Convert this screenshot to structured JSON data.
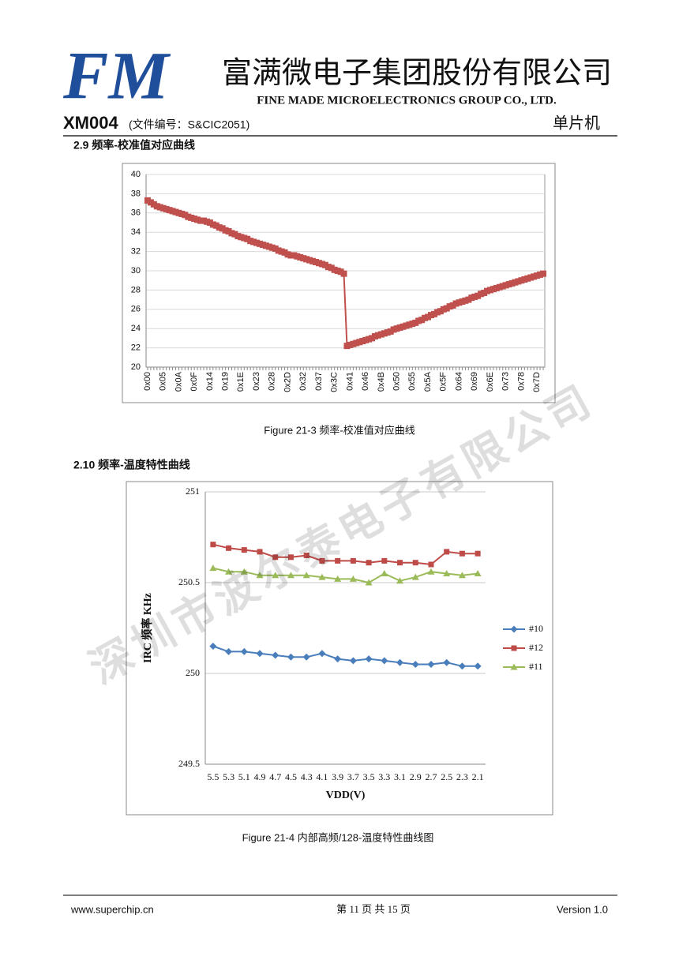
{
  "header": {
    "logo": "FM",
    "company": "富满微电子集团股份有限公司",
    "company_en": "FINE MADE MICROELECTRONICS GROUP CO., LTD.",
    "doc": "XM004",
    "doc_no": "(文件编号：S&CIC2051)",
    "category": "单片机"
  },
  "sections": [
    {
      "heading": "2.9 频率-校准值对应曲线",
      "caption": "Figure 21-3 频率-校准值对应曲线"
    },
    {
      "heading": "2.10 频率-温度特性曲线",
      "caption": "Figure 21-4 内部高频/128-温度特性曲线图"
    }
  ],
  "watermark": "深圳市波尔泰电子有限公司",
  "footer": {
    "site": "www.superchip.cn",
    "page": "第 11 页 共 15 页",
    "version": "Version 1.0"
  },
  "chart_data": [
    {
      "type": "line",
      "color": "#c0504d",
      "marker": "square",
      "grid": true,
      "categories": [
        "0x00",
        null,
        null,
        null,
        null,
        "0x05",
        null,
        null,
        null,
        null,
        "0x0A",
        null,
        null,
        null,
        null,
        "0x0F",
        null,
        null,
        null,
        null,
        "0x14",
        null,
        null,
        null,
        null,
        "0x19",
        null,
        null,
        null,
        null,
        "0x1E",
        null,
        null,
        null,
        null,
        "0x23",
        null,
        null,
        null,
        null,
        "0x28",
        null,
        null,
        null,
        null,
        "0x2D",
        null,
        null,
        null,
        null,
        "0x32",
        null,
        null,
        null,
        null,
        "0x37",
        null,
        null,
        null,
        null,
        "0x3C",
        null,
        null,
        null,
        null,
        "0x41",
        null,
        null,
        null,
        null,
        "0x46",
        null,
        null,
        null,
        null,
        "0x4B",
        null,
        null,
        null,
        null,
        "0x50",
        null,
        null,
        null,
        null,
        "0x55",
        null,
        null,
        null,
        null,
        "0x5A",
        null,
        null,
        null,
        null,
        "0x5F",
        null,
        null,
        null,
        null,
        "0x64",
        null,
        null,
        null,
        null,
        "0x69",
        null,
        null,
        null,
        null,
        "0x6E",
        null,
        null,
        null,
        null,
        "0x73",
        null,
        null,
        null,
        null,
        "0x78",
        null,
        null,
        null,
        null,
        "0x7D",
        null,
        null
      ],
      "values": [
        37.3,
        37.1,
        36.9,
        36.7,
        36.6,
        36.5,
        36.4,
        36.3,
        36.2,
        36.1,
        36.0,
        35.9,
        35.8,
        35.6,
        35.5,
        35.4,
        35.3,
        35.2,
        35.2,
        35.1,
        35.0,
        34.8,
        34.7,
        34.5,
        34.4,
        34.2,
        34.1,
        33.9,
        33.8,
        33.6,
        33.5,
        33.4,
        33.3,
        33.1,
        33.0,
        32.9,
        32.8,
        32.7,
        32.6,
        32.5,
        32.4,
        32.3,
        32.1,
        32.0,
        31.9,
        31.7,
        31.6,
        31.6,
        31.5,
        31.4,
        31.3,
        31.2,
        31.1,
        31.0,
        30.9,
        30.8,
        30.7,
        30.6,
        30.4,
        30.3,
        30.1,
        30.0,
        29.9,
        29.7,
        22.2,
        22.3,
        22.4,
        22.5,
        22.6,
        22.7,
        22.8,
        22.9,
        23.0,
        23.2,
        23.3,
        23.4,
        23.5,
        23.6,
        23.7,
        23.9,
        24.0,
        24.1,
        24.2,
        24.3,
        24.4,
        24.5,
        24.6,
        24.8,
        24.9,
        25.1,
        25.2,
        25.4,
        25.5,
        25.7,
        25.8,
        26.0,
        26.1,
        26.3,
        26.4,
        26.6,
        26.7,
        26.8,
        26.9,
        27.0,
        27.2,
        27.3,
        27.4,
        27.6,
        27.7,
        27.9,
        28.0,
        28.1,
        28.2,
        28.3,
        28.4,
        28.5,
        28.6,
        28.7,
        28.8,
        28.9,
        29.0,
        29.1,
        29.2,
        29.3,
        29.4,
        29.5,
        29.6,
        29.7
      ],
      "ylim": [
        20,
        40
      ],
      "yticks": [
        20,
        22,
        24,
        26,
        28,
        30,
        32,
        34,
        36,
        38,
        40
      ]
    },
    {
      "type": "line",
      "grid": true,
      "legend": "right",
      "x_label": "VDD(V)",
      "y_label": "IRC 频率 KHz",
      "categories": [
        "5.5",
        "5.3",
        "5.1",
        "4.9",
        "4.7",
        "4.5",
        "4.3",
        "4.1",
        "3.9",
        "3.7",
        "3.5",
        "3.3",
        "3.1",
        "2.9",
        "2.7",
        "2.5",
        "2.3",
        "2.1"
      ],
      "series": [
        {
          "name": "#10",
          "color": "#4a7ebb",
          "marker": "diamond",
          "values": [
            250.15,
            250.12,
            250.12,
            250.11,
            250.1,
            250.09,
            250.09,
            250.11,
            250.08,
            250.07,
            250.08,
            250.07,
            250.06,
            250.05,
            250.05,
            250.06,
            250.04,
            250.04
          ]
        },
        {
          "name": "#12",
          "color": "#be4b48",
          "marker": "square",
          "values": [
            250.71,
            250.69,
            250.68,
            250.67,
            250.64,
            250.64,
            250.65,
            250.62,
            250.62,
            250.62,
            250.61,
            250.62,
            250.61,
            250.61,
            250.6,
            250.67,
            250.66,
            250.66
          ]
        },
        {
          "name": "#11",
          "color": "#9bbb59",
          "marker": "triangle",
          "values": [
            250.58,
            250.56,
            250.56,
            250.54,
            250.54,
            250.54,
            250.54,
            250.53,
            250.52,
            250.52,
            250.5,
            250.55,
            250.51,
            250.53,
            250.56,
            250.55,
            250.54,
            250.55
          ]
        }
      ],
      "ylim": [
        249.5,
        251
      ],
      "yticks": [
        249.5,
        250,
        250.5,
        251
      ]
    }
  ]
}
